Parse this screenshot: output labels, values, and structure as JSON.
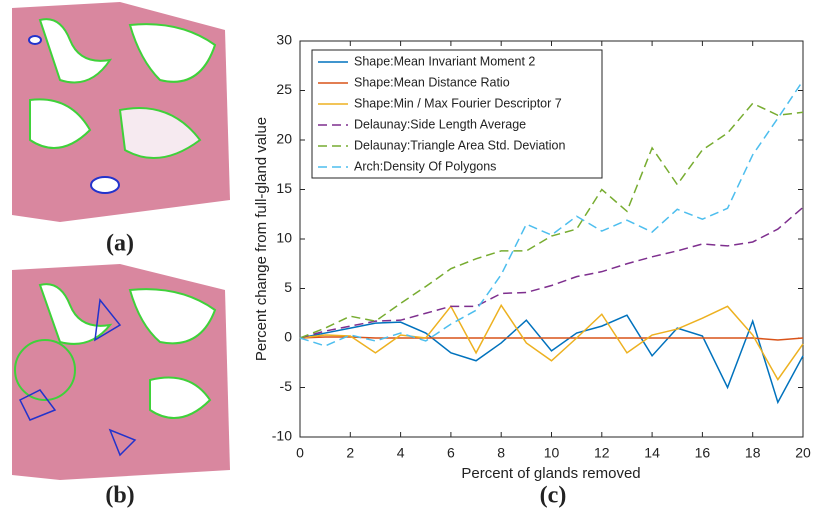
{
  "panel_labels": [
    "(a)",
    "(b)",
    "(c)"
  ],
  "chart_data": {
    "type": "line",
    "xlabel": "Percent of glands removed",
    "ylabel": "Percent change from full-gland value",
    "x": [
      0,
      1,
      2,
      3,
      4,
      5,
      6,
      7,
      8,
      9,
      10,
      11,
      12,
      13,
      14,
      15,
      16,
      17,
      18,
      19,
      20
    ],
    "xlim": [
      0,
      20
    ],
    "xticks": [
      0,
      2,
      4,
      6,
      8,
      10,
      12,
      14,
      16,
      18,
      20
    ],
    "ylim": [
      -10,
      30
    ],
    "yticks": [
      -10,
      -5,
      0,
      5,
      10,
      15,
      20,
      25,
      30
    ],
    "grid": false,
    "legend": "upper left",
    "series": [
      {
        "name": "Shape:Mean Invariant Moment 2",
        "color": "#0072BD",
        "style": "solid",
        "values": [
          0,
          0.5,
          1,
          1.5,
          1.6,
          0.5,
          -1.5,
          -2.3,
          -0.5,
          1.8,
          -1.3,
          0.5,
          1.2,
          2.3,
          -1.8,
          1,
          0.2,
          -5,
          1.7,
          -6.5,
          -1.8
        ]
      },
      {
        "name": "Shape:Mean Distance Ratio",
        "color": "#D95319",
        "style": "solid",
        "values": [
          0,
          0.1,
          0.1,
          0,
          0,
          0,
          0,
          0,
          0,
          0,
          0,
          0,
          0,
          0,
          0,
          0,
          0,
          0,
          0,
          -0.2,
          0
        ]
      },
      {
        "name": "Shape:Min / Max Fourier Descriptor 7",
        "color": "#EDB120",
        "style": "solid",
        "values": [
          0,
          0.3,
          0.2,
          -1.5,
          0.3,
          0,
          3.2,
          -1.5,
          3.3,
          -0.5,
          -2.3,
          0,
          2.4,
          -1.5,
          0.3,
          0.9,
          2,
          3.2,
          0.3,
          -4.2,
          -0.6
        ]
      },
      {
        "name": "Delaunay:Side Length Average",
        "color": "#7E2F8E",
        "style": "dashed",
        "values": [
          0,
          0.7,
          1.2,
          1.7,
          1.8,
          2.5,
          3.2,
          3.2,
          4.5,
          4.6,
          5.3,
          6.2,
          6.7,
          7.5,
          8.2,
          8.8,
          9.5,
          9.3,
          9.7,
          11,
          13.2
        ]
      },
      {
        "name": "Delaunay:Triangle Area Std. Deviation",
        "color": "#77AC30",
        "style": "dashed",
        "values": [
          0,
          1,
          2.2,
          1.7,
          3.5,
          5.2,
          7,
          8,
          8.8,
          8.8,
          10.3,
          11,
          15,
          12.8,
          19.2,
          15.5,
          19,
          20.7,
          23.7,
          22.5,
          22.8
        ]
      },
      {
        "name": "Arch:Density Of Polygons",
        "color": "#4DBEEE",
        "style": "dashed",
        "values": [
          0,
          -0.8,
          0.3,
          -0.3,
          0.5,
          -0.3,
          1.4,
          2.8,
          6.4,
          11.5,
          10.4,
          12.3,
          10.8,
          11.9,
          10.7,
          13,
          12,
          13.1,
          18.5,
          22.2,
          26
        ]
      }
    ]
  }
}
